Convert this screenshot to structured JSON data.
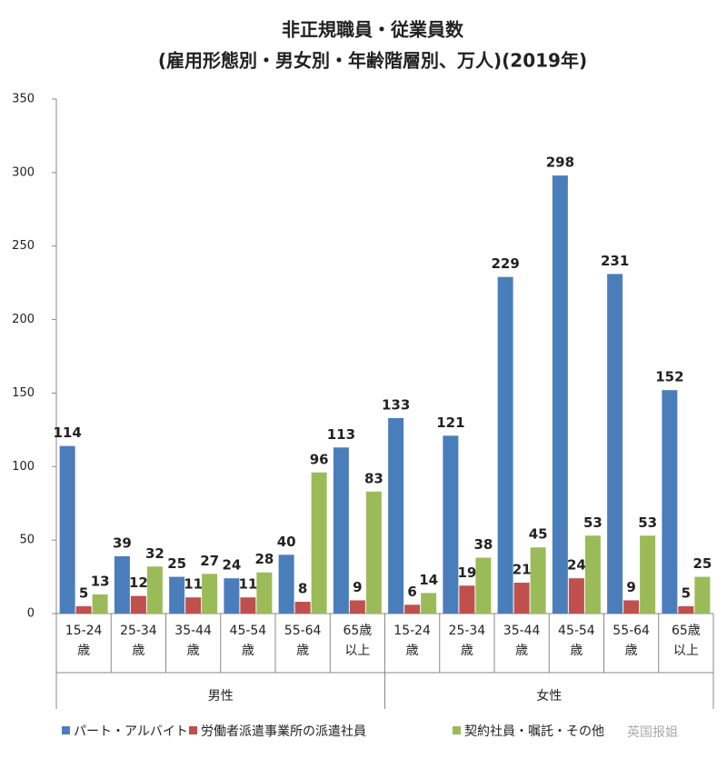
{
  "chart_data": {
    "type": "bar",
    "title": [
      "非正規職員・従業員数",
      "(雇用形態別・男女別・年齢階層別、万人)(2019年)"
    ],
    "categories": [
      [
        "15-24",
        "歳"
      ],
      [
        "25-34",
        "歳"
      ],
      [
        "35-44",
        "歳"
      ],
      [
        "45-54",
        "歳"
      ],
      [
        "55-64",
        "歳"
      ],
      [
        "65歳",
        "以上"
      ],
      [
        "15-24",
        "歳"
      ],
      [
        "25-34",
        "歳"
      ],
      [
        "35-44",
        "歳"
      ],
      [
        "45-54",
        "歳"
      ],
      [
        "55-64",
        "歳"
      ],
      [
        "65歳",
        "以上"
      ]
    ],
    "groups": [
      {
        "name": "男性",
        "size": 6
      },
      {
        "name": "女性",
        "size": 6
      }
    ],
    "series": [
      {
        "name": "パート・アルバイト",
        "color": "#4a7ebb",
        "values": [
          114,
          39,
          25,
          24,
          40,
          113,
          133,
          121,
          229,
          298,
          231,
          152
        ]
      },
      {
        "name": "労働者派遣事業所の派遣社員",
        "color": "#c0504d",
        "values": [
          5,
          12,
          11,
          11,
          8,
          9,
          6,
          19,
          21,
          24,
          9,
          5
        ]
      },
      {
        "name": "契約社員・嘱託・その他",
        "color": "#9bbb59",
        "values": [
          13,
          32,
          27,
          28,
          96,
          83,
          14,
          38,
          45,
          53,
          53,
          25
        ]
      }
    ],
    "ylim": [
      0,
      350
    ],
    "yticks": [
      0,
      50,
      100,
      150,
      200,
      250,
      300,
      350
    ],
    "legend": "bottom",
    "watermark": "英国报姐"
  }
}
